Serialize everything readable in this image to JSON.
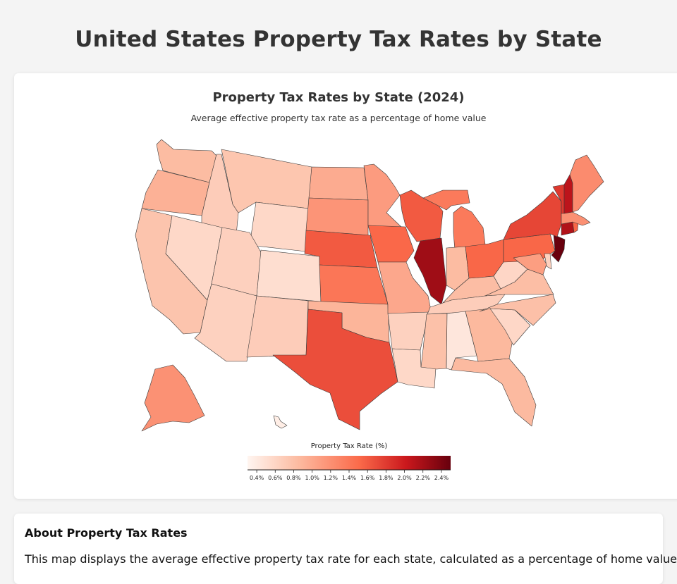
{
  "header": {
    "title": "United States Property Tax Rates by State"
  },
  "map": {
    "title": "Property Tax Rates by State (2024)",
    "subtitle": "Average effective property tax rate as a percentage of home value",
    "legend": {
      "title": "Property Tax Rate (%)",
      "ticks": [
        "0.4%",
        "0.6%",
        "0.8%",
        "1.0%",
        "1.2%",
        "1.4%",
        "1.6%",
        "1.8%",
        "2.0%",
        "2.2%",
        "2.4%"
      ],
      "min": 0.3,
      "max": 2.5
    },
    "colors": {
      "low": "#fff0e9",
      "mid_low": "#fcbba1",
      "mid": "#fb6a4a",
      "high": "#cb181d",
      "max": "#67000d",
      "border": "#3a3a3a"
    },
    "states": [
      {
        "name": "Washington",
        "rate": 0.84
      },
      {
        "name": "Oregon",
        "rate": 0.93
      },
      {
        "name": "California",
        "rate": 0.76
      },
      {
        "name": "Idaho",
        "rate": 0.67
      },
      {
        "name": "Nevada",
        "rate": 0.55
      },
      {
        "name": "Montana",
        "rate": 0.74
      },
      {
        "name": "Wyoming",
        "rate": 0.55
      },
      {
        "name": "Utah",
        "rate": 0.63
      },
      {
        "name": "Arizona",
        "rate": 0.62
      },
      {
        "name": "Colorado",
        "rate": 0.49
      },
      {
        "name": "New Mexico",
        "rate": 0.67
      },
      {
        "name": "North Dakota",
        "rate": 0.98
      },
      {
        "name": "South Dakota",
        "rate": 1.17
      },
      {
        "name": "Nebraska",
        "rate": 1.61
      },
      {
        "name": "Kansas",
        "rate": 1.41
      },
      {
        "name": "Oklahoma",
        "rate": 0.9
      },
      {
        "name": "Texas",
        "rate": 1.68
      },
      {
        "name": "Minnesota",
        "rate": 1.11
      },
      {
        "name": "Iowa",
        "rate": 1.52
      },
      {
        "name": "Missouri",
        "rate": 1.01
      },
      {
        "name": "Arkansas",
        "rate": 0.62
      },
      {
        "name": "Louisiana",
        "rate": 0.55
      },
      {
        "name": "Wisconsin",
        "rate": 1.61
      },
      {
        "name": "Illinois",
        "rate": 2.23
      },
      {
        "name": "Michigan",
        "rate": 1.38
      },
      {
        "name": "Indiana",
        "rate": 0.84
      },
      {
        "name": "Ohio",
        "rate": 1.53
      },
      {
        "name": "Kentucky",
        "rate": 0.83
      },
      {
        "name": "Tennessee",
        "rate": 0.66
      },
      {
        "name": "Mississippi",
        "rate": 0.79
      },
      {
        "name": "Alabama",
        "rate": 0.4
      },
      {
        "name": "Georgia",
        "rate": 0.87
      },
      {
        "name": "Florida",
        "rate": 0.86
      },
      {
        "name": "South Carolina",
        "rate": 0.56
      },
      {
        "name": "North Carolina",
        "rate": 0.8
      },
      {
        "name": "Virginia",
        "rate": 0.82
      },
      {
        "name": "West Virginia",
        "rate": 0.57
      },
      {
        "name": "Pennsylvania",
        "rate": 1.53
      },
      {
        "name": "New York",
        "rate": 1.73
      },
      {
        "name": "Vermont",
        "rate": 1.82
      },
      {
        "name": "New Hampshire",
        "rate": 2.09
      },
      {
        "name": "Maine",
        "rate": 1.24
      },
      {
        "name": "Massachusetts",
        "rate": 1.2
      },
      {
        "name": "Rhode Island",
        "rate": 1.53
      },
      {
        "name": "Connecticut",
        "rate": 2.14
      },
      {
        "name": "New Jersey",
        "rate": 2.49
      },
      {
        "name": "Delaware",
        "rate": 0.61
      },
      {
        "name": "Maryland",
        "rate": 1.09
      },
      {
        "name": "Alaska",
        "rate": 1.19
      },
      {
        "name": "Hawaii",
        "rate": 0.32
      }
    ]
  },
  "about": {
    "title": "About Property Tax Rates",
    "text": "This map displays the average effective property tax rate for each state, calculated as a percentage of home value."
  }
}
